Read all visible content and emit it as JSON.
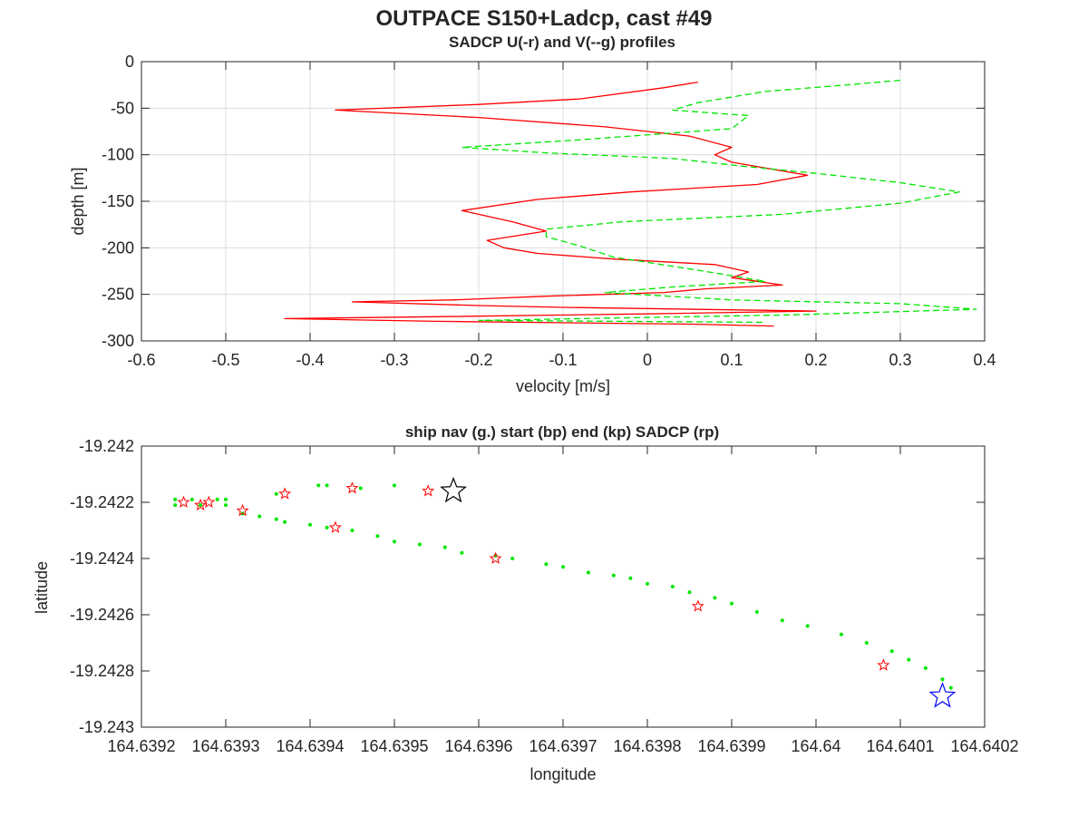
{
  "title": "OUTPACE S150+Ladcp, cast #49",
  "chart_data": [
    {
      "type": "line",
      "title": "SADCP U(-r) and V(--g) profiles",
      "xlabel": "velocity [m/s]",
      "ylabel": "depth [m]",
      "xlim": [
        -0.6,
        0.4
      ],
      "ylim": [
        -300,
        0
      ],
      "xticks": [
        "-0.6",
        "-0.5",
        "-0.4",
        "-0.3",
        "-0.2",
        "-0.1",
        "0",
        "0.1",
        "0.2",
        "0.3",
        "0.4"
      ],
      "yticks": [
        "0",
        "-50",
        "-100",
        "-150",
        "-200",
        "-250",
        "-300"
      ],
      "grid": true,
      "colors": {
        "u": "#ff0000",
        "v": "#00e600"
      },
      "series": [
        {
          "style": "solid",
          "color": "#ff0000",
          "x": [
            0.06,
            0.02,
            -0.08,
            -0.2,
            -0.37,
            -0.2,
            -0.05,
            0.05,
            0.1,
            0.08,
            0.1,
            0.19,
            0.13,
            -0.02,
            -0.13,
            -0.22,
            -0.16,
            -0.12,
            -0.19,
            -0.17,
            -0.13,
            -0.04,
            0.08,
            0.12,
            0.1,
            0.16,
            0.07,
            0.02,
            -0.12,
            -0.23,
            -0.35,
            -0.2,
            -0.1,
            0.2,
            0.0,
            -0.25,
            -0.43,
            -0.25,
            0.05,
            0.15
          ],
          "y": [
            -22,
            -28,
            -40,
            -46,
            -52,
            -60,
            -70,
            -80,
            -92,
            -100,
            -108,
            -122,
            -132,
            -140,
            -148,
            -160,
            -172,
            -182,
            -192,
            -200,
            -206,
            -212,
            -218,
            -226,
            -232,
            -240,
            -244,
            -248,
            -252,
            -256,
            -258,
            -262,
            -264,
            -268,
            -271,
            -274,
            -276,
            -279,
            -282,
            -284
          ]
        },
        {
          "style": "dashed",
          "color": "#00e600",
          "x": [
            0.3,
            0.25,
            0.14,
            0.06,
            0.03,
            0.12,
            0.1,
            -0.08,
            -0.22,
            -0.12,
            0.03,
            0.11,
            0.2,
            0.3,
            0.37,
            0.3,
            0.16,
            -0.03,
            -0.12,
            -0.12,
            -0.08,
            -0.04,
            0.06,
            0.14,
            0.03,
            -0.05,
            0.1,
            0.3,
            0.39,
            0.17,
            -0.2,
            0.14
          ],
          "y": [
            -20,
            -24,
            -32,
            -44,
            -52,
            -58,
            -72,
            -84,
            -92,
            -98,
            -104,
            -112,
            -120,
            -130,
            -140,
            -152,
            -164,
            -172,
            -180,
            -188,
            -198,
            -210,
            -224,
            -236,
            -242,
            -248,
            -256,
            -260,
            -266,
            -272,
            -278,
            -280
          ]
        }
      ]
    },
    {
      "type": "scatter",
      "title": "ship nav (g.) start (bp) end (kp) SADCP (rp)",
      "xlabel": "longitude",
      "ylabel": "latitude",
      "xlim": [
        164.6392,
        164.6402
      ],
      "ylim": [
        -19.243,
        -19.242
      ],
      "xticks": [
        "164.6392",
        "164.6393",
        "164.6394",
        "164.6395",
        "164.6396",
        "164.6397",
        "164.6398",
        "164.6399",
        "164.64",
        "164.6401",
        "164.6402"
      ],
      "yticks": [
        "-19.242",
        "-19.2422",
        "-19.2424",
        "-19.2426",
        "-19.2428",
        "-19.243"
      ],
      "grid": false,
      "series": [
        {
          "marker": "dot",
          "color": "#00e600",
          "x": [
            164.63924,
            164.63924,
            164.63926,
            164.63927,
            164.63929,
            164.6393,
            164.6393,
            164.63932,
            164.63934,
            164.63936,
            164.63937,
            164.6394,
            164.63942,
            164.63945,
            164.63948,
            164.6395,
            164.63953,
            164.63956,
            164.63958,
            164.63962,
            164.63964,
            164.63968,
            164.6397,
            164.63973,
            164.63976,
            164.63978,
            164.6398,
            164.63983,
            164.63985,
            164.63988,
            164.6399,
            164.63993,
            164.63996,
            164.63999,
            164.64003,
            164.64006,
            164.64009,
            164.64011,
            164.64013,
            164.64015,
            164.64016,
            164.63936,
            164.63941,
            164.63942,
            164.63946,
            164.6395
          ],
          "y": [
            -19.24219,
            -19.24221,
            -19.24219,
            -19.24221,
            -19.24219,
            -19.24219,
            -19.24221,
            -19.24224,
            -19.24225,
            -19.24226,
            -19.24227,
            -19.24228,
            -19.24229,
            -19.2423,
            -19.24232,
            -19.24234,
            -19.24235,
            -19.24236,
            -19.24238,
            -19.24239,
            -19.2424,
            -19.24242,
            -19.24243,
            -19.24245,
            -19.24246,
            -19.24247,
            -19.24249,
            -19.2425,
            -19.24252,
            -19.24254,
            -19.24256,
            -19.24259,
            -19.24262,
            -19.24264,
            -19.24267,
            -19.2427,
            -19.24273,
            -19.24276,
            -19.24279,
            -19.24283,
            -19.24286,
            -19.24217,
            -19.24214,
            -19.24214,
            -19.24215,
            -19.24214
          ]
        },
        {
          "marker": "star",
          "color": "#ff0000",
          "x": [
            164.63925,
            164.63927,
            164.63928,
            164.63932,
            164.63937,
            164.63943,
            164.63945,
            164.63954,
            164.63962,
            164.63986,
            164.64008
          ],
          "y": [
            -19.2422,
            -19.24221,
            -19.2422,
            -19.24223,
            -19.24217,
            -19.24229,
            -19.24215,
            -19.24216,
            -19.2424,
            -19.24257,
            -19.24278
          ]
        },
        {
          "marker": "big-star",
          "color": "#000000",
          "x": [
            164.63957
          ],
          "y": [
            -19.24216
          ]
        },
        {
          "marker": "big-star",
          "color": "#0000ff",
          "x": [
            164.64015
          ],
          "y": [
            -19.24289
          ]
        }
      ]
    }
  ]
}
